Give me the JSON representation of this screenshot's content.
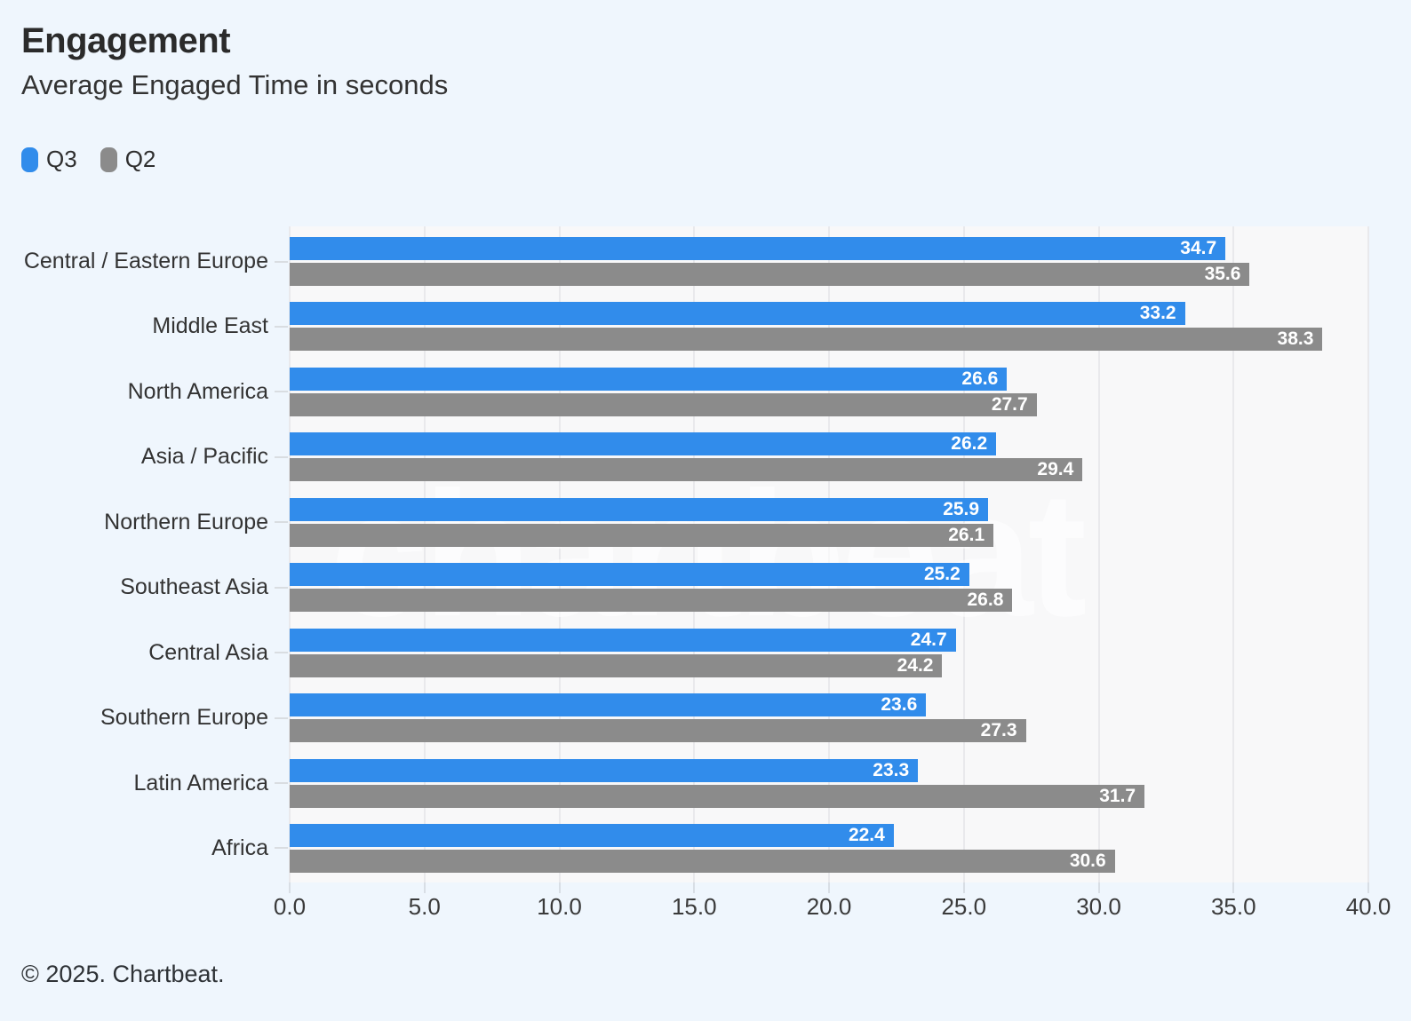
{
  "header": {
    "title": "Engagement",
    "subtitle": "Average Engaged Time in seconds"
  },
  "legend": {
    "items": [
      {
        "label": "Q3",
        "color": "#318ceb"
      },
      {
        "label": "Q2",
        "color": "#8b8b8b"
      }
    ]
  },
  "chart_data": {
    "type": "bar",
    "orientation": "horizontal",
    "title": "Engagement",
    "subtitle": "Average Engaged Time in seconds",
    "categories": [
      "Central / Eastern Europe",
      "Middle East",
      "North America",
      "Asia / Pacific",
      "Northern Europe",
      "Southeast Asia",
      "Central Asia",
      "Southern Europe",
      "Latin America",
      "Africa"
    ],
    "series": [
      {
        "name": "Q3",
        "color": "#318ceb",
        "values": [
          34.7,
          33.2,
          26.6,
          26.2,
          25.9,
          25.2,
          24.7,
          23.6,
          23.3,
          22.4
        ]
      },
      {
        "name": "Q2",
        "color": "#8b8b8b",
        "values": [
          35.6,
          38.3,
          27.7,
          29.4,
          26.1,
          26.8,
          24.2,
          27.3,
          31.7,
          30.6
        ]
      }
    ],
    "xlim": [
      0,
      40
    ],
    "xtick_labels": [
      "0.0",
      "5.0",
      "10.0",
      "15.0",
      "20.0",
      "25.0",
      "30.0",
      "35.0",
      "40.0"
    ],
    "grid": "vertical",
    "legend_position": "top-left",
    "value_labels": "inside-end"
  },
  "watermark": {
    "text": "chartbeat"
  },
  "footer": {
    "copyright": "© 2025. Chartbeat."
  }
}
